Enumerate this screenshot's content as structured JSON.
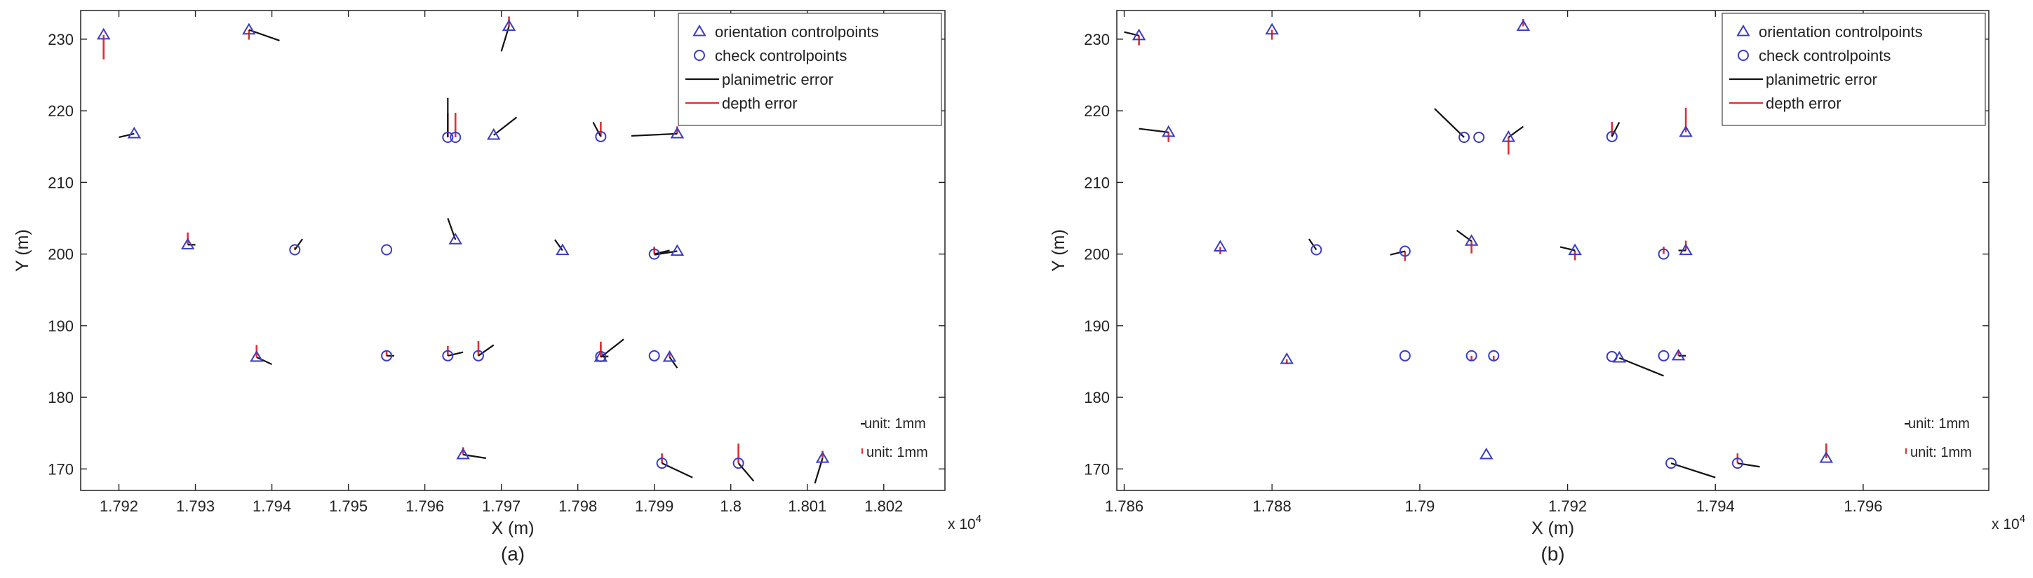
{
  "chart_data": [
    {
      "type": "scatter",
      "panel_label": "(a)",
      "xlabel": "X (m)",
      "ylabel": "Y (m)",
      "x_exponent_label": "x 10",
      "x_exponent_sup": "4",
      "xlim": [
        1.7915,
        1.8028
      ],
      "ylim": [
        167,
        234
      ],
      "xticks": [
        1.792,
        1.793,
        1.794,
        1.795,
        1.796,
        1.797,
        1.798,
        1.799,
        1.8,
        1.801,
        1.802
      ],
      "xtick_labels": [
        "1.792",
        "1.793",
        "1.794",
        "1.795",
        "1.796",
        "1.797",
        "1.798",
        "1.799",
        "1.8",
        "1.801",
        "1.802"
      ],
      "yticks": [
        170,
        180,
        190,
        200,
        210,
        220,
        230
      ],
      "ytick_labels": [
        "170",
        "180",
        "190",
        "200",
        "210",
        "220",
        "230"
      ],
      "legend": {
        "placement": "top-right",
        "entries": [
          {
            "label": "orientation controlpoints",
            "kind": "triangle"
          },
          {
            "label": "check controlpoints",
            "kind": "circle"
          },
          {
            "label": "planimetric error",
            "kind": "black-line"
          },
          {
            "label": "depth error",
            "kind": "red-line"
          }
        ]
      },
      "unit_labels": [
        "unit: 1mm",
        "unit: 1mm"
      ],
      "orientation_points": [
        {
          "x": 1.7918,
          "y": 230.6,
          "dx": 0,
          "dy": 0,
          "dz": -5
        },
        {
          "x": 1.7922,
          "y": 216.8,
          "dx": -0.0002,
          "dy": -0.5,
          "dz": 0
        },
        {
          "x": 1.7929,
          "y": 201.3,
          "dx": 0.0001,
          "dy": 0,
          "dz": 2.5
        },
        {
          "x": 1.7937,
          "y": 231.3,
          "dx": 0.0004,
          "dy": -1.5,
          "dz": -2
        },
        {
          "x": 1.7938,
          "y": 185.6,
          "dx": 0.0002,
          "dy": -1,
          "dz": 2.5
        },
        {
          "x": 1.7964,
          "y": 202,
          "dx": -0.0001,
          "dy": 3,
          "dz": 0
        },
        {
          "x": 1.7965,
          "y": 172,
          "dx": 0.0003,
          "dy": -0.5,
          "dz": 1.5
        },
        {
          "x": 1.7969,
          "y": 216.6,
          "dx": 0.0003,
          "dy": 2.5,
          "dz": 0
        },
        {
          "x": 1.7971,
          "y": 231.8,
          "dx": -0.0001,
          "dy": -3.5,
          "dz": 2
        },
        {
          "x": 1.7978,
          "y": 200.5,
          "dx": -0.0001,
          "dy": 1.5,
          "dz": 0
        },
        {
          "x": 1.7983,
          "y": 185.6,
          "dx": 0.0003,
          "dy": 2.5,
          "dz": 2.5
        },
        {
          "x": 1.7992,
          "y": 185.6,
          "dx": 0.0001,
          "dy": -1.5,
          "dz": 1
        },
        {
          "x": 1.7993,
          "y": 216.8,
          "dx": -0.0006,
          "dy": -0.3,
          "dz": 1.5
        },
        {
          "x": 1.7993,
          "y": 200.4,
          "dx": -0.0003,
          "dy": -0.5,
          "dz": 0
        },
        {
          "x": 1.8012,
          "y": 171.5,
          "dx": -0.0001,
          "dy": -3.5,
          "dz": 1.5
        }
      ],
      "check_points": [
        {
          "x": 1.7943,
          "y": 200.6,
          "dx": 0.0001,
          "dy": 1.5,
          "dz": 0.5
        },
        {
          "x": 1.7955,
          "y": 200.6,
          "dx": 0,
          "dy": 0,
          "dz": 0
        },
        {
          "x": 1.7955,
          "y": 185.8,
          "dx": 0.0001,
          "dy": 0,
          "dz": 1
        },
        {
          "x": 1.7963,
          "y": 216.3,
          "dx": 0,
          "dy": 5.5,
          "dz": 5
        },
        {
          "x": 1.7964,
          "y": 216.3,
          "dx": 0,
          "dy": 0,
          "dz": 5
        },
        {
          "x": 1.7963,
          "y": 185.8,
          "dx": 0.0002,
          "dy": 0.5,
          "dz": 2
        },
        {
          "x": 1.7967,
          "y": 185.8,
          "dx": 0.0002,
          "dy": 1.5,
          "dz": 3
        },
        {
          "x": 1.7983,
          "y": 216.4,
          "dx": -0.0001,
          "dy": 2,
          "dz": 3
        },
        {
          "x": 1.7983,
          "y": 185.7,
          "dx": 0.0001,
          "dy": 0,
          "dz": 3
        },
        {
          "x": 1.799,
          "y": 200,
          "dx": 0.0002,
          "dy": 0.5,
          "dz": 1.5
        },
        {
          "x": 1.799,
          "y": 185.8,
          "dx": 0,
          "dy": 0,
          "dz": 0
        },
        {
          "x": 1.7991,
          "y": 170.8,
          "dx": 0.0004,
          "dy": -2,
          "dz": 2
        },
        {
          "x": 1.8001,
          "y": 170.8,
          "dx": 0.0002,
          "dy": -2.5,
          "dz": 4
        }
      ]
    },
    {
      "type": "scatter",
      "panel_label": "(b)",
      "xlabel": "X (m)",
      "ylabel": "Y (m)",
      "x_exponent_label": "x 10",
      "x_exponent_sup": "4",
      "xlim": [
        1.7859,
        1.7977
      ],
      "ylim": [
        167,
        234
      ],
      "xticks": [
        1.786,
        1.788,
        1.79,
        1.792,
        1.794,
        1.796
      ],
      "xtick_labels": [
        "1.786",
        "1.788",
        "1.79",
        "1.792",
        "1.794",
        "1.796"
      ],
      "yticks": [
        170,
        180,
        190,
        200,
        210,
        220,
        230
      ],
      "ytick_labels": [
        "170",
        "180",
        "190",
        "200",
        "210",
        "220",
        "230"
      ],
      "legend": {
        "placement": "top-right",
        "entries": [
          {
            "label": "orientation controlpoints",
            "kind": "triangle"
          },
          {
            "label": "check controlpoints",
            "kind": "circle"
          },
          {
            "label": "planimetric error",
            "kind": "black-line"
          },
          {
            "label": "depth error",
            "kind": "red-line"
          }
        ]
      },
      "unit_labels": [
        "unit: 1mm",
        "unit: 1mm"
      ],
      "orientation_points": [
        {
          "x": 1.7862,
          "y": 230.5,
          "dx": -0.0002,
          "dy": 0.5,
          "dz": -2
        },
        {
          "x": 1.7866,
          "y": 217,
          "dx": -0.0004,
          "dy": 0.5,
          "dz": -2
        },
        {
          "x": 1.7873,
          "y": 201,
          "dx": 0,
          "dy": 0,
          "dz": -1.5
        },
        {
          "x": 1.788,
          "y": 231.3,
          "dx": 0,
          "dy": 0,
          "dz": -2
        },
        {
          "x": 1.7882,
          "y": 185.3,
          "dx": 0,
          "dy": 0,
          "dz": -1
        },
        {
          "x": 1.7907,
          "y": 201.8,
          "dx": -0.0002,
          "dy": 1.5,
          "dz": -2.5
        },
        {
          "x": 1.7909,
          "y": 172,
          "dx": 0,
          "dy": 0,
          "dz": 0
        },
        {
          "x": 1.7912,
          "y": 216.3,
          "dx": 0.0002,
          "dy": 1.5,
          "dz": -3.5
        },
        {
          "x": 1.7914,
          "y": 231.8,
          "dx": 0,
          "dy": 0,
          "dz": 1.5
        },
        {
          "x": 1.7921,
          "y": 200.5,
          "dx": -0.0002,
          "dy": 0.5,
          "dz": -2
        },
        {
          "x": 1.7927,
          "y": 185.5,
          "dx": 0.0006,
          "dy": -2.5,
          "dz": 0
        },
        {
          "x": 1.7935,
          "y": 185.8,
          "dx": 0.0001,
          "dy": 0,
          "dz": 1
        },
        {
          "x": 1.7936,
          "y": 217,
          "dx": 0,
          "dy": 0,
          "dz": 5
        },
        {
          "x": 1.7936,
          "y": 200.5,
          "dx": -0.0001,
          "dy": 0,
          "dz": 2
        },
        {
          "x": 1.7955,
          "y": 171.5,
          "dx": 0,
          "dy": 0,
          "dz": 3
        }
      ],
      "check_points": [
        {
          "x": 1.7886,
          "y": 200.6,
          "dx": -0.0001,
          "dy": 1.5,
          "dz": 0
        },
        {
          "x": 1.7898,
          "y": 200.4,
          "dx": -0.0002,
          "dy": -0.5,
          "dz": -2
        },
        {
          "x": 1.7898,
          "y": 185.8,
          "dx": 0,
          "dy": 0,
          "dz": 0
        },
        {
          "x": 1.7906,
          "y": 216.3,
          "dx": -0.0004,
          "dy": 4,
          "dz": 0
        },
        {
          "x": 1.7908,
          "y": 216.3,
          "dx": 0,
          "dy": 0,
          "dz": 0
        },
        {
          "x": 1.7907,
          "y": 185.8,
          "dx": 0,
          "dy": 0,
          "dz": -1
        },
        {
          "x": 1.791,
          "y": 185.8,
          "dx": 0,
          "dy": 0,
          "dz": -1
        },
        {
          "x": 1.7926,
          "y": 216.4,
          "dx": 0.0001,
          "dy": 2,
          "dz": 3
        },
        {
          "x": 1.7926,
          "y": 185.7,
          "dx": 0,
          "dy": 0,
          "dz": 0
        },
        {
          "x": 1.7933,
          "y": 200,
          "dx": 0,
          "dy": 0,
          "dz": 1.5
        },
        {
          "x": 1.7933,
          "y": 185.8,
          "dx": 0,
          "dy": 0,
          "dz": 0
        },
        {
          "x": 1.7934,
          "y": 170.8,
          "dx": 0.0006,
          "dy": -2,
          "dz": 0
        },
        {
          "x": 1.7943,
          "y": 170.8,
          "dx": 0.0003,
          "dy": -0.5,
          "dz": 2
        }
      ]
    }
  ]
}
